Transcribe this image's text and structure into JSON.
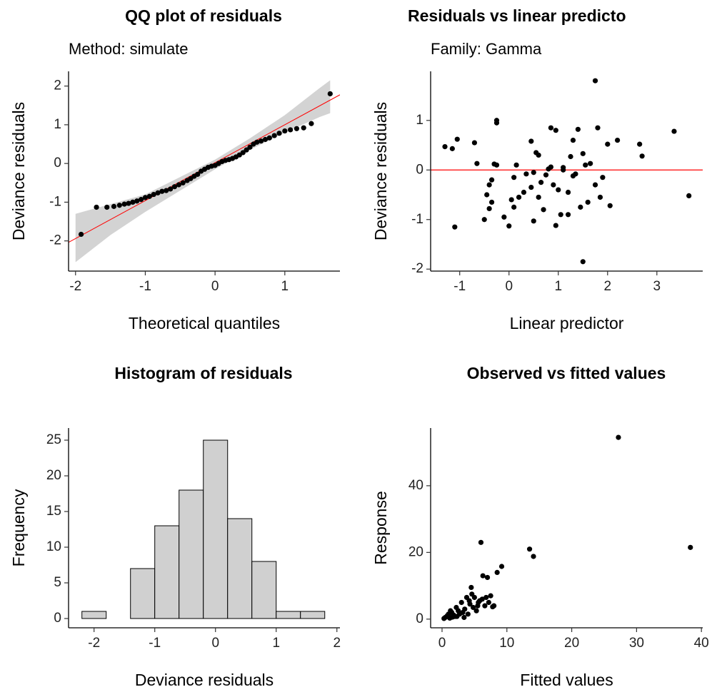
{
  "chart_data": [
    {
      "type": "qq",
      "title": "QQ plot of residuals",
      "subtitle": "Method: simulate",
      "x_label": "Theoretical quantiles",
      "y_label": "Deviance residuals",
      "xlim": [
        -2.1,
        1.79
      ],
      "ylim": [
        -2.78,
        2.38
      ],
      "xticks": [
        -2,
        -1,
        0,
        1
      ],
      "yticks": [
        -2,
        -1,
        0,
        1,
        2
      ],
      "point_color": "#000000",
      "line_color": "#ff0000",
      "band_color": "#d3d3d3",
      "x": [
        -1.92,
        -1.7,
        -1.55,
        -1.45,
        -1.37,
        -1.3,
        -1.24,
        -1.18,
        -1.12,
        -1.06,
        -1.0,
        -0.94,
        -0.88,
        -0.82,
        -0.76,
        -0.7,
        -0.64,
        -0.58,
        -0.52,
        -0.46,
        -0.4,
        -0.35,
        -0.3,
        -0.25,
        -0.2,
        -0.15,
        -0.1,
        -0.05,
        0,
        0.05,
        0.1,
        0.15,
        0.2,
        0.25,
        0.3,
        0.35,
        0.4,
        0.45,
        0.5,
        0.55,
        0.6,
        0.66,
        0.72,
        0.78,
        0.85,
        0.92,
        1.0,
        1.08,
        1.17,
        1.27,
        1.38,
        1.65
      ],
      "values": [
        -1.83,
        -1.13,
        -1.13,
        -1.11,
        -1.08,
        -1.05,
        -1.03,
        -1.0,
        -0.97,
        -0.93,
        -0.88,
        -0.85,
        -0.8,
        -0.76,
        -0.72,
        -0.7,
        -0.66,
        -0.6,
        -0.55,
        -0.5,
        -0.44,
        -0.39,
        -0.33,
        -0.28,
        -0.2,
        -0.15,
        -0.1,
        -0.07,
        -0.05,
        0.0,
        0.05,
        0.08,
        0.1,
        0.13,
        0.17,
        0.22,
        0.28,
        0.35,
        0.42,
        0.5,
        0.55,
        0.58,
        0.62,
        0.66,
        0.72,
        0.78,
        0.84,
        0.87,
        0.9,
        0.92,
        1.03,
        1.8
      ],
      "line": {
        "intercept": 0.02,
        "slope": 0.98
      },
      "band": {
        "x": [
          -2.0,
          -1.5,
          -1.0,
          -0.5,
          0,
          0.5,
          1.0,
          1.5,
          1.65
        ],
        "lower": [
          -2.55,
          -1.85,
          -1.25,
          -0.7,
          -0.15,
          0.35,
          0.8,
          1.2,
          1.3
        ],
        "upper": [
          -1.3,
          -1.05,
          -0.8,
          -0.35,
          0.1,
          0.65,
          1.25,
          1.95,
          2.15
        ]
      }
    },
    {
      "type": "scatter",
      "title": "Residuals vs linear predicto",
      "subtitle": "Family: Gamma",
      "x_label": "Linear predictor",
      "y_label": "Deviance residuals",
      "xlim": [
        -1.59,
        3.93
      ],
      "ylim": [
        -2.04,
        1.99
      ],
      "xticks": [
        -1,
        0,
        1,
        2,
        3
      ],
      "yticks": [
        -2,
        -1,
        0,
        1
      ],
      "point_color": "#000000",
      "line_color": "#ff0000",
      "hline": 0,
      "x": [
        -1.3,
        -1.15,
        -1.05,
        -1.1,
        -0.7,
        -0.65,
        -0.25,
        -0.25,
        -0.3,
        -0.25,
        -0.45,
        -0.4,
        -0.35,
        -0.4,
        -0.5,
        -0.35,
        -0.1,
        0.0,
        0.05,
        0.1,
        0.15,
        0.1,
        0.2,
        0.3,
        0.35,
        0.45,
        0.5,
        0.45,
        0.5,
        0.55,
        0.6,
        0.65,
        0.7,
        0.75,
        0.8,
        0.85,
        0.85,
        0.9,
        0.95,
        0.95,
        1.05,
        1.1,
        1.2,
        1.25,
        1.3,
        1.35,
        1.4,
        1.45,
        1.5,
        1.5,
        1.55,
        1.6,
        1.65,
        1.75,
        1.75,
        1.8,
        1.85,
        1.9,
        2.0,
        2.05,
        2.2,
        2.65,
        2.7,
        3.35,
        3.65,
        1.3,
        1.2,
        1.0,
        0.6,
        1.1
      ],
      "values": [
        0.47,
        0.43,
        0.62,
        -1.15,
        0.55,
        0.13,
        1.0,
        0.95,
        0.12,
        0.1,
        -0.5,
        -0.3,
        -0.65,
        -0.78,
        -1.0,
        -0.2,
        -0.95,
        -1.13,
        -0.6,
        -0.75,
        0.1,
        -0.15,
        -0.55,
        -0.45,
        -0.08,
        0.58,
        -1.03,
        -0.35,
        -0.05,
        0.35,
        0.3,
        -0.25,
        -0.8,
        -0.1,
        0.02,
        0.06,
        0.85,
        -0.3,
        0.8,
        -1.12,
        -0.9,
        0.0,
        -0.45,
        0.27,
        -0.12,
        -0.08,
        0.82,
        -0.75,
        0.33,
        -1.85,
        0.1,
        -0.65,
        0.13,
        -0.3,
        1.8,
        0.85,
        -0.55,
        -0.15,
        0.52,
        -0.72,
        0.6,
        0.52,
        0.28,
        0.78,
        -0.52,
        0.6,
        -0.9,
        -0.4,
        -0.55,
        0.05
      ]
    },
    {
      "type": "histogram",
      "title": "Histogram of residuals",
      "x_label": "Deviance residuals",
      "y_label": "Frequency",
      "xlim": [
        -2.42,
        2.05
      ],
      "ylim": [
        -1.3,
        26.7
      ],
      "xticks": [
        -2,
        -1,
        0,
        1,
        2
      ],
      "yticks": [
        0,
        5,
        10,
        15,
        20,
        25
      ],
      "color": "#d0d0d0",
      "bins": [
        -2.2,
        -1.8,
        -1.4,
        -1.0,
        -0.6,
        -0.2,
        0.2,
        0.6,
        1.0,
        1.4,
        1.8
      ],
      "values": [
        1,
        0,
        7,
        13,
        18,
        25,
        14,
        8,
        1,
        1
      ]
    },
    {
      "type": "scatter",
      "title": "Observed vs fitted values",
      "x_label": "Fitted values",
      "y_label": "Response",
      "xlim": [
        -1.76,
        40.2
      ],
      "ylim": [
        -2.6,
        57.3
      ],
      "xticks": [
        0,
        10,
        20,
        30,
        40
      ],
      "yticks": [
        0,
        20,
        40
      ],
      "point_color": "#000000",
      "x": [
        0.5,
        0.8,
        1.0,
        1.2,
        1.5,
        1.8,
        2.0,
        2.2,
        2.5,
        2.7,
        3.0,
        3.2,
        3.5,
        3.8,
        4.0,
        4.2,
        4.5,
        4.6,
        4.8,
        5.0,
        5.3,
        5.5,
        5.8,
        6.0,
        6.2,
        6.3,
        6.6,
        7.0,
        7.2,
        7.5,
        8.0,
        8.5,
        9.2,
        13.5,
        14.1,
        27.2,
        38.3,
        1.3,
        2.3,
        3.4,
        4.3,
        5.6,
        7.8,
        6.8,
        0.3,
        1.6
      ],
      "values": [
        0.5,
        1.0,
        1.5,
        0.3,
        2.0,
        1.2,
        0.8,
        3.5,
        2.5,
        1.5,
        5.0,
        2.0,
        3.0,
        6.5,
        1.5,
        5.5,
        9.5,
        7.5,
        3.5,
        6.5,
        2.5,
        4.0,
        5.5,
        23.0,
        6.0,
        13.0,
        4.0,
        12.5,
        5.0,
        7.0,
        4.0,
        14.0,
        15.8,
        21.0,
        18.8,
        54.5,
        21.5,
        2.5,
        0.8,
        0.5,
        4.5,
        5.0,
        3.7,
        6.5,
        0.2,
        0.6
      ]
    }
  ]
}
